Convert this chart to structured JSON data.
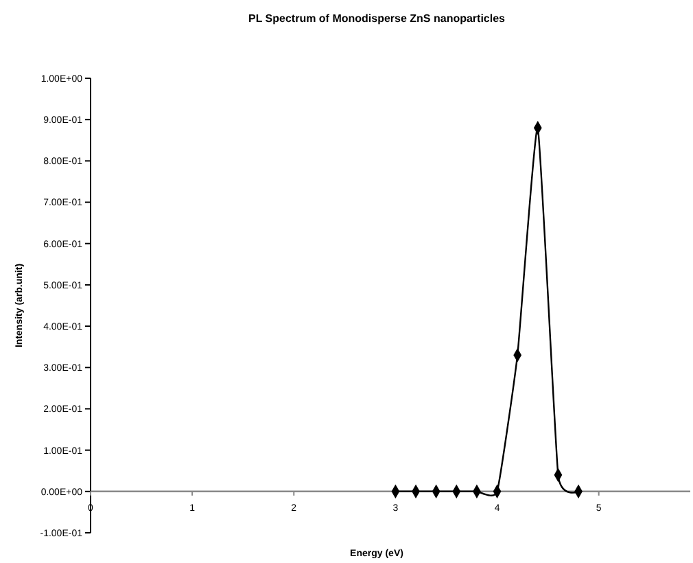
{
  "chart_data": {
    "type": "line",
    "title": "PL Spectrum of Monodisperse ZnS nanoparticles",
    "xlabel": "Energy (eV)",
    "ylabel": "Intensity (arb.unit)",
    "x": [
      3,
      3.2,
      3.4,
      3.6,
      3.8,
      4,
      4.2,
      4.4,
      4.6,
      4.8
    ],
    "series": [
      {
        "color": "#000000",
        "values": [
          0,
          0,
          0,
          0,
          0,
          0,
          0.33,
          0.88,
          0.04,
          0
        ]
      }
    ],
    "xlim": [
      0,
      5.9
    ],
    "xticks": [
      0,
      1,
      2,
      3,
      4,
      5
    ],
    "ylim": [
      -0.1,
      1
    ],
    "yticks": [
      {
        "value": -0.1,
        "label": "-1.00E-01"
      },
      {
        "value": 0,
        "label": "0.00E+00"
      },
      {
        "value": 0.1,
        "label": "1.00E-01"
      },
      {
        "value": 0.2,
        "label": "2.00E-01"
      },
      {
        "value": 0.3,
        "label": "3.00E-01"
      },
      {
        "value": 0.4,
        "label": "4.00E-01"
      },
      {
        "value": 0.5,
        "label": "5.00E-01"
      },
      {
        "value": 0.6,
        "label": "6.00E-01"
      },
      {
        "value": 0.7,
        "label": "7.00E-01"
      },
      {
        "value": 0.8,
        "label": "8.00E-01"
      },
      {
        "value": 0.9,
        "label": "9.00E-01"
      },
      {
        "value": 1,
        "label": "1.00E+00"
      }
    ],
    "marker": "diamond",
    "line_style": "solid",
    "grid": false
  }
}
